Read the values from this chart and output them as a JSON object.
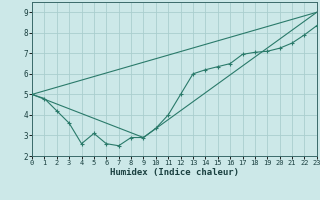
{
  "xlabel": "Humidex (Indice chaleur)",
  "bg_color": "#cce8e8",
  "grid_color": "#aacece",
  "line_color": "#2a7a6a",
  "line1_x": [
    0,
    1,
    2,
    3,
    4,
    5,
    6,
    7,
    8,
    9,
    10,
    11,
    12,
    13,
    14,
    15,
    16,
    17,
    18,
    19,
    20,
    21,
    22,
    23
  ],
  "line1_y": [
    5.0,
    4.8,
    4.2,
    3.6,
    2.6,
    3.1,
    2.6,
    2.5,
    2.9,
    2.9,
    3.35,
    4.0,
    5.0,
    6.0,
    6.2,
    6.35,
    6.5,
    6.95,
    7.05,
    7.1,
    7.25,
    7.5,
    7.9,
    8.35
  ],
  "line2_x": [
    0,
    23
  ],
  "line2_y": [
    5.0,
    9.0
  ],
  "line3_x": [
    0,
    9,
    23
  ],
  "line3_y": [
    5.0,
    2.9,
    9.0
  ],
  "xlim": [
    0,
    23
  ],
  "ylim": [
    2.0,
    9.5
  ],
  "yticks": [
    2,
    3,
    4,
    5,
    6,
    7,
    8,
    9
  ],
  "xticks": [
    0,
    1,
    2,
    3,
    4,
    5,
    6,
    7,
    8,
    9,
    10,
    11,
    12,
    13,
    14,
    15,
    16,
    17,
    18,
    19,
    20,
    21,
    22,
    23
  ],
  "xlabel_fontsize": 6.5,
  "tick_fontsize": 5.0,
  "ytick_fontsize": 5.5
}
